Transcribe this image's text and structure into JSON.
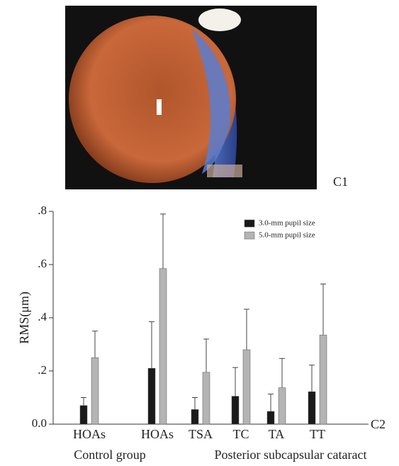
{
  "panel_labels": {
    "photo": "C1",
    "chart": "C2"
  },
  "chart_data": {
    "type": "bar",
    "y_label": "RMS(μm)",
    "categories": [
      "HOAs",
      "HOAs",
      "TSA",
      "TC",
      "TA",
      "TT"
    ],
    "groups": [
      "Control group",
      "Posterior subcapsular cataract"
    ],
    "series": [
      {
        "name": "3.0-mm pupil size",
        "color": "#1a1a1a",
        "values": [
          0.07,
          0.21,
          0.055,
          0.105,
          0.048,
          0.122
        ],
        "errors": [
          0.03,
          0.175,
          0.045,
          0.108,
          0.065,
          0.1
        ]
      },
      {
        "name": "5.0-mm pupil size",
        "color": "#b4b4b4",
        "values": [
          0.25,
          0.585,
          0.195,
          0.28,
          0.137,
          0.335
        ],
        "errors": [
          0.1,
          0.205,
          0.125,
          0.152,
          0.11,
          0.192
        ]
      }
    ],
    "ylim": [
      0,
      0.8
    ],
    "yticks": [
      {
        "value": 0,
        "label": "0.0"
      },
      {
        "value": 0.2,
        "label": ".2"
      },
      {
        "value": 0.4,
        "label": ".4"
      },
      {
        "value": 0.6,
        "label": ".6"
      },
      {
        "value": 0.8,
        "label": ".8"
      }
    ],
    "legend": "upper right"
  }
}
